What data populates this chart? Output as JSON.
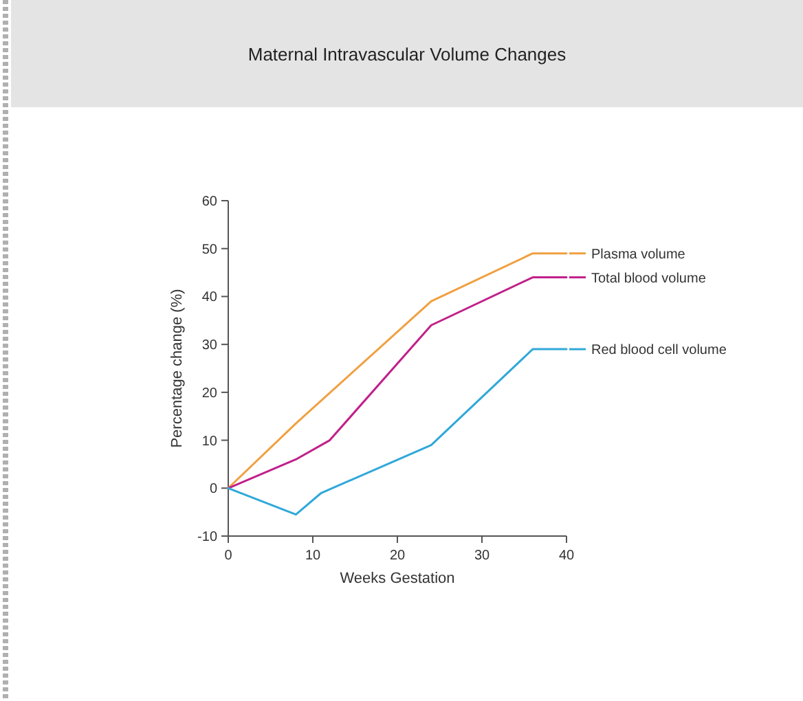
{
  "chart_data": {
    "type": "line",
    "title": "Maternal Intravascular Volume Changes",
    "xlabel": "Weeks Gestation",
    "ylabel": "Percentage change (%)",
    "xlim": [
      0,
      40
    ],
    "xticks": [
      0,
      10,
      20,
      30,
      40
    ],
    "ylim": [
      -10,
      60
    ],
    "yticks": [
      -10,
      0,
      10,
      20,
      30,
      40,
      50,
      60
    ],
    "grid": false,
    "legend": "right",
    "marker": "none",
    "line_style": "solid",
    "series": [
      {
        "name": "Plasma volume",
        "color": "#f0a040",
        "x": [
          0,
          8,
          24,
          36,
          40
        ],
        "values": [
          0,
          13.5,
          39,
          49,
          49
        ]
      },
      {
        "name": "Total blood volume",
        "color": "#c0208a",
        "x": [
          0,
          8,
          12,
          24,
          36,
          40
        ],
        "values": [
          0,
          6,
          10,
          34,
          44,
          44
        ]
      },
      {
        "name": "Red blood cell volume",
        "color": "#30a8d8",
        "x": [
          0,
          8,
          11,
          24,
          36,
          40
        ],
        "values": [
          0,
          -5.5,
          -1,
          9,
          29,
          29
        ]
      }
    ]
  }
}
